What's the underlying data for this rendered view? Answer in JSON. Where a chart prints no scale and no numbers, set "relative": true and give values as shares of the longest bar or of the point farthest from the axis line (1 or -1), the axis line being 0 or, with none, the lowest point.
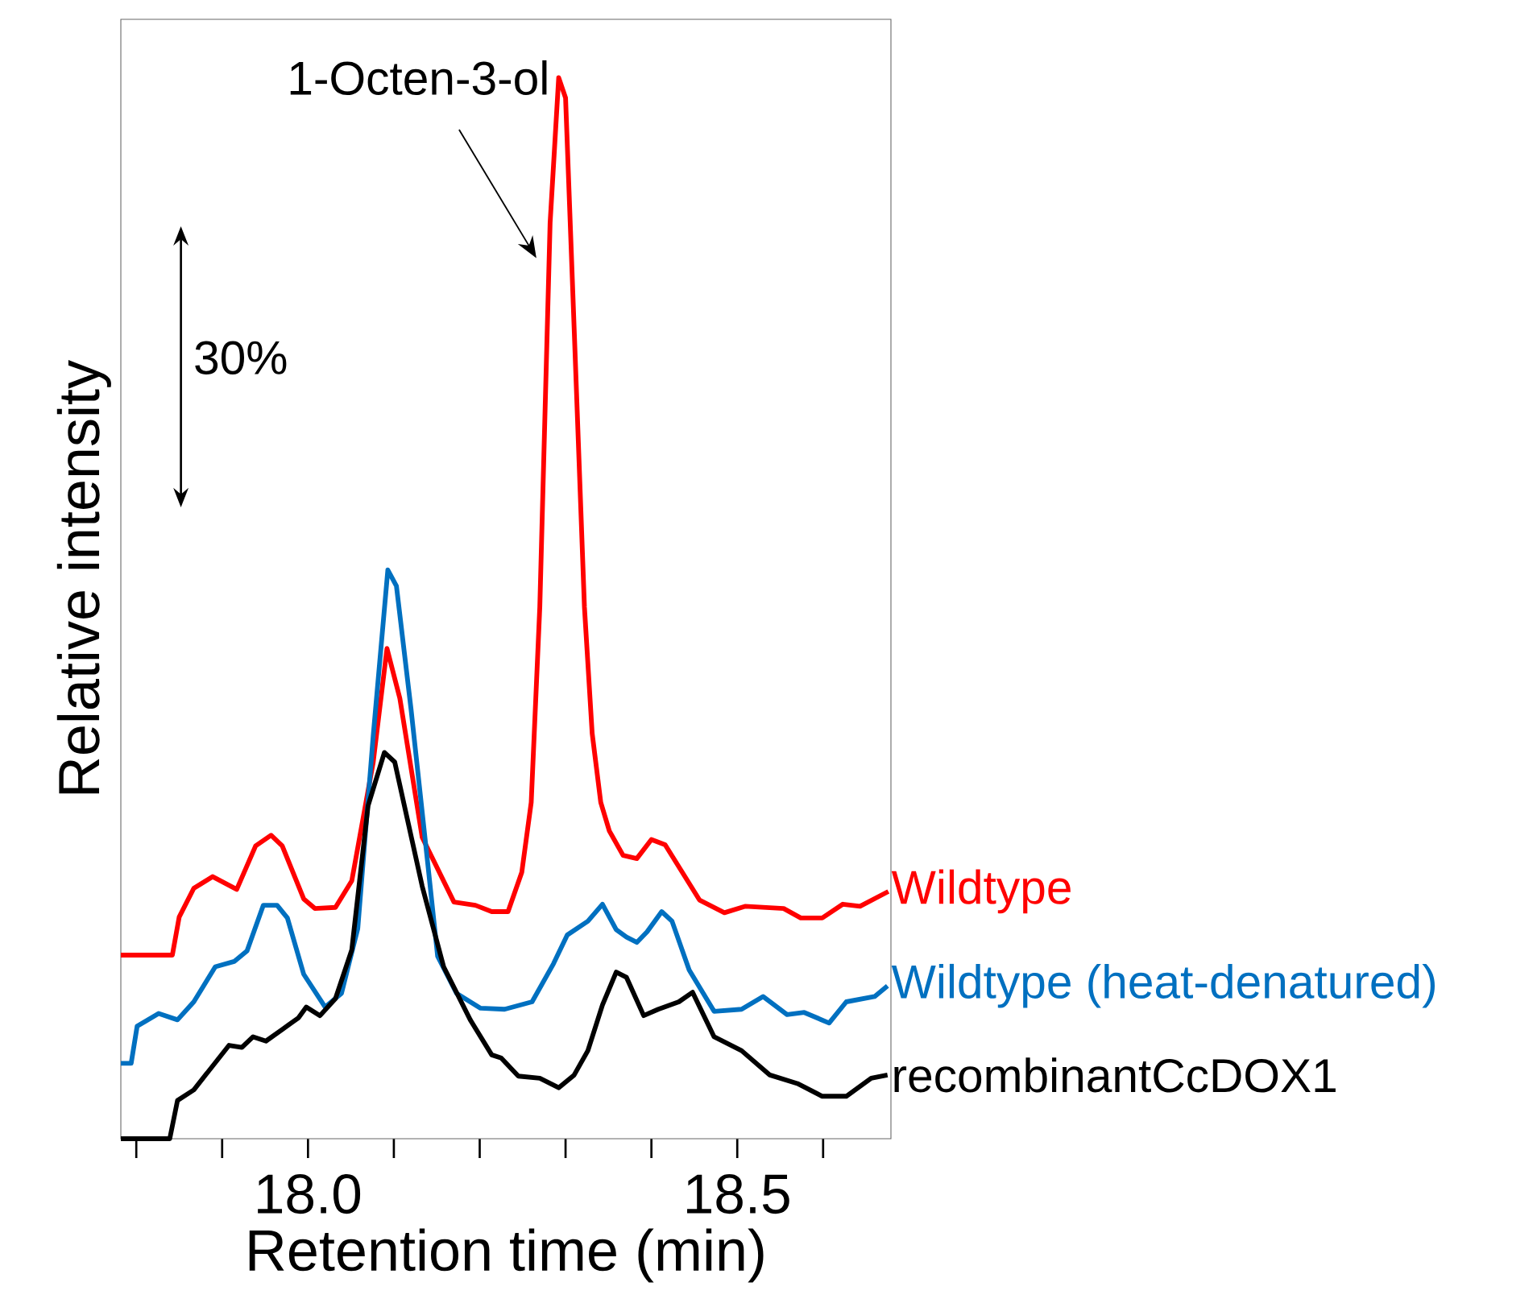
{
  "chart_data": {
    "type": "line",
    "relative": true,
    "xlabel": "Retention time (min)",
    "ylabel": "Relative intensity",
    "xlim": [
      17.782,
      18.679
    ],
    "xticks": [
      {
        "value": 17.8,
        "label": null
      },
      {
        "value": 17.9,
        "label": null
      },
      {
        "value": 18.0,
        "label": "18.0"
      },
      {
        "value": 18.1,
        "label": null
      },
      {
        "value": 18.2,
        "label": null
      },
      {
        "value": 18.3,
        "label": null
      },
      {
        "value": 18.4,
        "label": null
      },
      {
        "value": 18.5,
        "label": "18.5"
      },
      {
        "value": 18.6,
        "label": null
      }
    ],
    "series": [
      {
        "name": "Wildtype",
        "color": "#ff0000",
        "x": [
          17.782,
          17.842,
          17.85,
          17.867,
          17.889,
          17.917,
          17.939,
          17.957,
          17.97,
          17.995,
          18.008,
          18.032,
          18.051,
          18.076,
          18.092,
          18.107,
          18.133,
          18.17,
          18.195,
          18.214,
          18.233,
          18.249,
          18.26,
          18.27,
          18.282,
          18.292,
          18.3,
          18.31,
          18.322,
          18.331,
          18.341,
          18.351,
          18.367,
          18.383,
          18.4,
          18.416,
          18.436,
          18.456,
          18.485,
          18.509,
          18.554,
          18.574,
          18.599,
          18.623,
          18.643,
          18.676
        ],
        "values": [
          0.173,
          0.173,
          0.209,
          0.236,
          0.247,
          0.235,
          0.276,
          0.286,
          0.276,
          0.226,
          0.217,
          0.218,
          0.243,
          0.355,
          0.462,
          0.415,
          0.284,
          0.223,
          0.22,
          0.214,
          0.214,
          0.251,
          0.317,
          0.501,
          0.863,
          1.0,
          0.981,
          0.764,
          0.501,
          0.382,
          0.317,
          0.29,
          0.267,
          0.264,
          0.282,
          0.277,
          0.251,
          0.225,
          0.213,
          0.219,
          0.217,
          0.208,
          0.208,
          0.221,
          0.219,
          0.233
        ]
      },
      {
        "name": "Wildtype (heat-denatured)",
        "color": "#0070c0",
        "x": [
          17.782,
          17.794,
          17.801,
          17.826,
          17.848,
          17.867,
          17.892,
          17.914,
          17.929,
          17.948,
          17.964,
          17.976,
          17.995,
          18.02,
          18.039,
          18.058,
          18.076,
          18.093,
          18.103,
          18.12,
          18.139,
          18.151,
          18.173,
          18.201,
          18.229,
          18.261,
          18.286,
          18.302,
          18.326,
          18.343,
          18.359,
          18.371,
          18.383,
          18.395,
          18.412,
          18.424,
          18.444,
          18.473,
          18.505,
          18.53,
          18.558,
          18.578,
          18.607,
          18.627,
          18.66,
          18.675
        ],
        "values": [
          0.071,
          0.071,
          0.106,
          0.118,
          0.112,
          0.129,
          0.162,
          0.167,
          0.177,
          0.22,
          0.22,
          0.208,
          0.155,
          0.124,
          0.137,
          0.198,
          0.38,
          0.536,
          0.521,
          0.405,
          0.263,
          0.172,
          0.137,
          0.123,
          0.122,
          0.129,
          0.165,
          0.192,
          0.205,
          0.221,
          0.197,
          0.19,
          0.185,
          0.195,
          0.214,
          0.205,
          0.159,
          0.12,
          0.122,
          0.134,
          0.117,
          0.119,
          0.109,
          0.129,
          0.134,
          0.144
        ]
      },
      {
        "name": "recombinantCcDOX1",
        "color": "#000000",
        "x": [
          17.782,
          17.839,
          17.848,
          17.867,
          17.908,
          17.923,
          17.936,
          17.951,
          17.97,
          17.989,
          17.998,
          18.014,
          18.032,
          18.051,
          18.07,
          18.089,
          18.101,
          18.133,
          18.158,
          18.189,
          18.214,
          18.225,
          18.245,
          18.27,
          18.292,
          18.31,
          18.326,
          18.343,
          18.359,
          18.371,
          18.391,
          18.408,
          18.432,
          18.448,
          18.473,
          18.505,
          18.538,
          18.57,
          18.599,
          18.627,
          18.656,
          18.675
        ],
        "values": [
          0.0,
          0.0,
          0.036,
          0.046,
          0.088,
          0.086,
          0.096,
          0.092,
          0.103,
          0.114,
          0.124,
          0.116,
          0.132,
          0.178,
          0.314,
          0.364,
          0.355,
          0.238,
          0.162,
          0.112,
          0.079,
          0.076,
          0.059,
          0.057,
          0.048,
          0.06,
          0.083,
          0.126,
          0.157,
          0.152,
          0.116,
          0.122,
          0.129,
          0.138,
          0.096,
          0.083,
          0.06,
          0.052,
          0.04,
          0.04,
          0.057,
          0.06
        ]
      }
    ],
    "annotations": [
      {
        "text": "1-Octen-3-ol",
        "x": 18.292,
        "y": 1.0
      },
      "30%"
    ]
  }
}
